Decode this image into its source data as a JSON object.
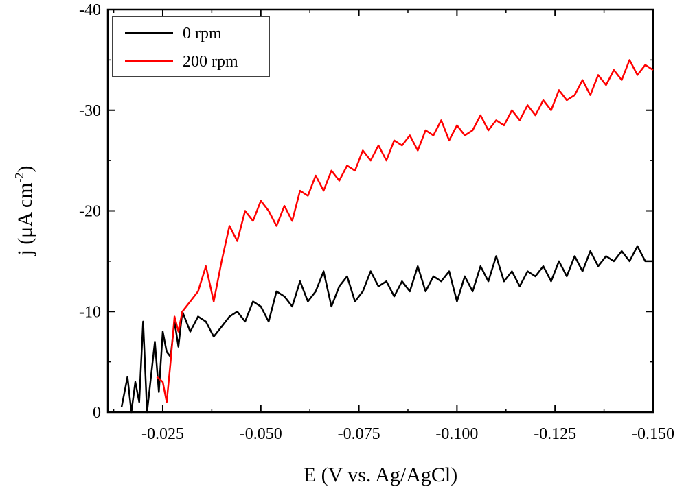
{
  "chart_data": {
    "type": "line",
    "title": "",
    "xlabel": "E (V vs. Ag/AgCl)",
    "ylabel_main": "j (μA cm",
    "ylabel_sup": "-2",
    "ylabel_close": ")",
    "xlim": [
      -0.011,
      -0.15
    ],
    "ylim": [
      0,
      -40
    ],
    "x_ticks": [
      -0.025,
      -0.05,
      -0.075,
      -0.1,
      -0.125,
      -0.15
    ],
    "x_tick_labels": [
      "-0.025",
      "-0.050",
      "-0.075",
      "-0.100",
      "-0.125",
      "-0.150"
    ],
    "y_ticks": [
      0,
      -10,
      -20,
      -30,
      -40
    ],
    "y_tick_labels": [
      "0",
      "-10",
      "-20",
      "-30",
      "-40"
    ],
    "legend_position": "top-left",
    "grid": false,
    "series": [
      {
        "name": "0 rpm",
        "color": "#000000",
        "x": [
          -0.0145,
          -0.016,
          -0.017,
          -0.018,
          -0.019,
          -0.02,
          -0.021,
          -0.022,
          -0.023,
          -0.024,
          -0.025,
          -0.026,
          -0.027,
          -0.028,
          -0.029,
          -0.03,
          -0.032,
          -0.034,
          -0.036,
          -0.038,
          -0.04,
          -0.042,
          -0.044,
          -0.046,
          -0.048,
          -0.05,
          -0.052,
          -0.054,
          -0.056,
          -0.058,
          -0.06,
          -0.062,
          -0.064,
          -0.066,
          -0.068,
          -0.07,
          -0.072,
          -0.074,
          -0.076,
          -0.078,
          -0.08,
          -0.082,
          -0.084,
          -0.086,
          -0.088,
          -0.09,
          -0.092,
          -0.094,
          -0.096,
          -0.098,
          -0.1,
          -0.102,
          -0.104,
          -0.106,
          -0.108,
          -0.11,
          -0.112,
          -0.114,
          -0.116,
          -0.118,
          -0.12,
          -0.122,
          -0.124,
          -0.126,
          -0.128,
          -0.13,
          -0.132,
          -0.134,
          -0.136,
          -0.138,
          -0.14,
          -0.142,
          -0.144,
          -0.146,
          -0.148,
          -0.15
        ],
        "y": [
          -0.5,
          -3.5,
          0,
          -3.0,
          -1.0,
          -9.0,
          0,
          -3.5,
          -7.0,
          -2.0,
          -8.0,
          -6.0,
          -5.5,
          -9.0,
          -6.5,
          -10.0,
          -8.0,
          -9.5,
          -9.0,
          -7.5,
          -8.5,
          -9.5,
          -10.0,
          -9.0,
          -11.0,
          -10.5,
          -9.0,
          -12.0,
          -11.5,
          -10.5,
          -13.0,
          -11.0,
          -12.0,
          -14.0,
          -10.5,
          -12.5,
          -13.5,
          -11.0,
          -12.0,
          -14.0,
          -12.5,
          -13.0,
          -11.5,
          -13.0,
          -12.0,
          -14.5,
          -12.0,
          -13.5,
          -13.0,
          -14.0,
          -11.0,
          -13.5,
          -12.0,
          -14.5,
          -13.0,
          -15.5,
          -13.0,
          -14.0,
          -12.5,
          -14.0,
          -13.5,
          -14.5,
          -13.0,
          -15.0,
          -13.5,
          -15.5,
          -14.0,
          -16.0,
          -14.5,
          -15.5,
          -15.0,
          -16.0,
          -15.0,
          -16.5,
          -15.0,
          -15.0
        ]
      },
      {
        "name": "200 rpm",
        "color": "#ff0000",
        "x": [
          -0.0235,
          -0.025,
          -0.026,
          -0.027,
          -0.028,
          -0.029,
          -0.03,
          -0.032,
          -0.034,
          -0.036,
          -0.038,
          -0.04,
          -0.042,
          -0.044,
          -0.046,
          -0.048,
          -0.05,
          -0.052,
          -0.054,
          -0.056,
          -0.058,
          -0.06,
          -0.062,
          -0.064,
          -0.066,
          -0.068,
          -0.07,
          -0.072,
          -0.074,
          -0.076,
          -0.078,
          -0.08,
          -0.082,
          -0.084,
          -0.086,
          -0.088,
          -0.09,
          -0.092,
          -0.094,
          -0.096,
          -0.098,
          -0.1,
          -0.102,
          -0.104,
          -0.106,
          -0.108,
          -0.11,
          -0.112,
          -0.114,
          -0.116,
          -0.118,
          -0.12,
          -0.122,
          -0.124,
          -0.126,
          -0.128,
          -0.13,
          -0.132,
          -0.134,
          -0.136,
          -0.138,
          -0.14,
          -0.142,
          -0.144,
          -0.146,
          -0.148,
          -0.15
        ],
        "y": [
          -3.5,
          -3.0,
          -1.0,
          -5.0,
          -9.5,
          -8.0,
          -10.0,
          -11.0,
          -12.0,
          -14.5,
          -11.0,
          -15.0,
          -18.5,
          -17.0,
          -20.0,
          -19.0,
          -21.0,
          -20.0,
          -18.5,
          -20.5,
          -19.0,
          -22.0,
          -21.5,
          -23.5,
          -22.0,
          -24.0,
          -23.0,
          -24.5,
          -24.0,
          -26.0,
          -25.0,
          -26.5,
          -25.0,
          -27.0,
          -26.5,
          -27.5,
          -26.0,
          -28.0,
          -27.5,
          -29.0,
          -27.0,
          -28.5,
          -27.5,
          -28.0,
          -29.5,
          -28.0,
          -29.0,
          -28.5,
          -30.0,
          -29.0,
          -30.5,
          -29.5,
          -31.0,
          -30.0,
          -32.0,
          -31.0,
          -31.5,
          -33.0,
          -31.5,
          -33.5,
          -32.5,
          -34.0,
          -33.0,
          -35.0,
          -33.5,
          -34.5,
          -34.0
        ]
      }
    ]
  }
}
